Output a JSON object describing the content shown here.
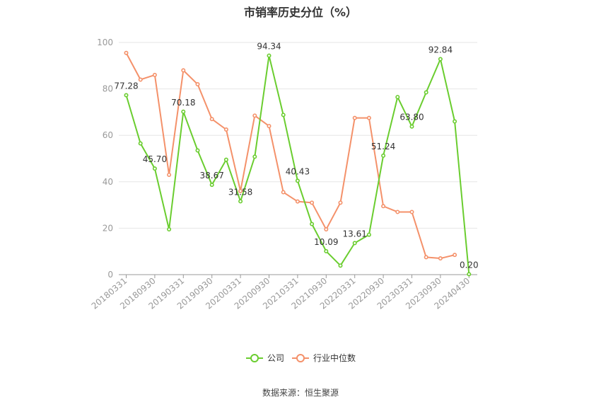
{
  "title": "市销率历史分位（%）",
  "source": "数据来源：恒生聚源",
  "chart_data": {
    "type": "line",
    "title": "市销率历史分位（%）",
    "xlabel": "",
    "ylabel": "",
    "ylim": [
      0,
      100
    ],
    "y_ticks": [
      "0",
      "20",
      "40",
      "60",
      "80",
      "100"
    ],
    "x_tick_labels": [
      "20180331",
      "20180930",
      "20190331",
      "20190930",
      "20200331",
      "20200930",
      "20210331",
      "20210930",
      "20220331",
      "20220930",
      "20230331",
      "20230930",
      "20240430"
    ],
    "grid": true,
    "legend_position": "bottom",
    "series": [
      {
        "name": "公司",
        "color": "#6acd2f",
        "values": [
          77.28,
          56.5,
          45.7,
          19.5,
          70.18,
          53.5,
          38.67,
          49.5,
          31.58,
          50.8,
          94.34,
          68.8,
          40.43,
          21.8,
          10.09,
          3.9,
          13.61,
          17.2,
          51.24,
          76.5,
          63.8,
          78.5,
          92.84,
          66.0,
          0.2
        ],
        "labels": [
          "77.28",
          "",
          "45.70",
          "",
          "70.18",
          "",
          "38.67",
          "",
          "31.58",
          "",
          "94.34",
          "",
          "40.43",
          "",
          "10.09",
          "",
          "13.61",
          "",
          "51.24",
          "",
          "63.80",
          "",
          "92.84",
          "",
          "0.20"
        ]
      },
      {
        "name": "行业中位数",
        "color": "#f4916a",
        "values": [
          95.5,
          84.0,
          86.0,
          43.0,
          88.0,
          82.0,
          67.0,
          62.5,
          36.0,
          68.5,
          64.0,
          35.5,
          31.5,
          31.0,
          19.5,
          31.0,
          67.5,
          67.5,
          29.5,
          27.0,
          27.0,
          7.5,
          7.0,
          8.5,
          null
        ]
      }
    ]
  }
}
